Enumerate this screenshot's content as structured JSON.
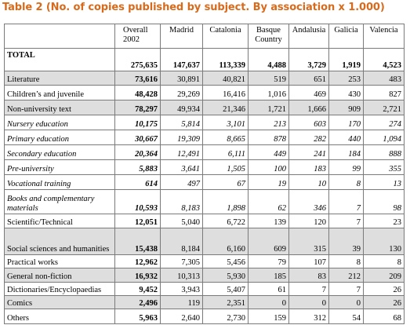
{
  "title": "Table 2 (No. of copies published by subject. By association x 1.000)",
  "columns": [
    "Overall 2002",
    "Madrid",
    "Catalonia",
    "Basque Country",
    "Andalusia",
    "Galicia",
    "Valencia"
  ],
  "total": {
    "label": "TOTAL",
    "values": [
      "275,635",
      "147,637",
      "113,339",
      "4,488",
      "3,729",
      "1,919",
      "4,523"
    ]
  },
  "rows": [
    {
      "label": "Literature",
      "values": [
        "73,616",
        "30,891",
        "40,821",
        "519",
        "651",
        "253",
        "483"
      ]
    },
    {
      "label": "Children’s and juvenile",
      "values": [
        "48,428",
        "29,269",
        "16,416",
        "1,016",
        "469",
        "430",
        "827"
      ]
    },
    {
      "label": "Non-university text",
      "values": [
        "78,297",
        "49,934",
        "21,346",
        "1,721",
        "1,666",
        "909",
        "2,721"
      ]
    },
    {
      "label": "Nursery education",
      "values": [
        "10,175",
        "5,814",
        "3,101",
        "213",
        "603",
        "170",
        "274"
      ]
    },
    {
      "label": "Primary education",
      "values": [
        "30,667",
        "19,309",
        "8,665",
        "878",
        "282",
        "440",
        "1,094"
      ]
    },
    {
      "label": "Secondary education",
      "values": [
        "20,364",
        "12,491",
        "6,111",
        "449",
        "241",
        "184",
        "888"
      ]
    },
    {
      "label": "Pre-university",
      "values": [
        "5,883",
        "3,641",
        "1,505",
        "100",
        "183",
        "99",
        "355"
      ]
    },
    {
      "label": "Vocational training",
      "values": [
        "614",
        "497",
        "67",
        "19",
        "10",
        "8",
        "13"
      ]
    },
    {
      "label": "Books and complementary materials",
      "values": [
        "10,593",
        "8,183",
        "1,898",
        "62",
        "346",
        "7",
        "98"
      ]
    },
    {
      "label": "Scientific/Technical",
      "values": [
        "12,051",
        "5,040",
        "6,722",
        "139",
        "120",
        "7",
        "23"
      ]
    },
    {
      "label": "Social sciences and humanities",
      "values": [
        "15,438",
        "8,184",
        "6,160",
        "609",
        "315",
        "39",
        "130"
      ]
    },
    {
      "label": "Practical works",
      "values": [
        "12,962",
        "7,305",
        "5,456",
        "79",
        "107",
        "8",
        "8"
      ]
    },
    {
      "label": "General non-fiction",
      "values": [
        "16,932",
        "10,313",
        "5,930",
        "185",
        "83",
        "212",
        "209"
      ]
    },
    {
      "label": "Dictionaries/Encyclopaedias",
      "values": [
        "9,452",
        "3,943",
        "5,407",
        "61",
        "7",
        "7",
        "26"
      ]
    },
    {
      "label": "Comics",
      "values": [
        "2,496",
        "119",
        "2,351",
        "0",
        "0",
        "0",
        "26"
      ]
    },
    {
      "label": "Others",
      "values": [
        "5,963",
        "2,640",
        "2,730",
        "159",
        "312",
        "54",
        "68"
      ]
    }
  ]
}
